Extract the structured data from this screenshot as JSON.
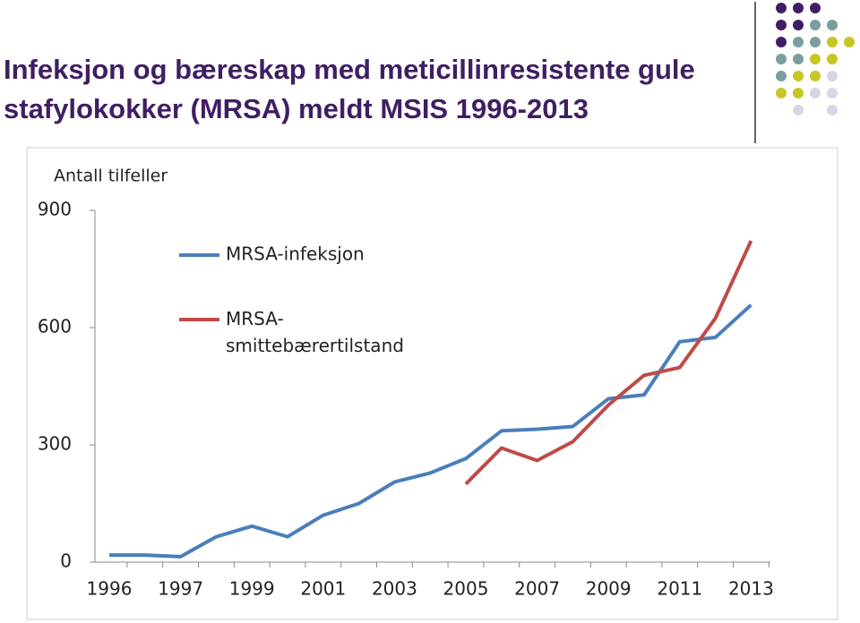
{
  "chart_data": {
    "type": "line",
    "title": "Infeksjon og bæreskap med meticillinresistente gule stafylokokker (MRSA) meldt MSIS 1996-2013",
    "y_label": "Antall tilfeller",
    "categories": [
      "1996",
      null,
      "1997",
      null,
      "1999",
      null,
      "2001",
      null,
      "2003",
      null,
      "2005",
      null,
      "2007",
      null,
      "2009",
      null,
      "2011",
      null,
      "2013"
    ],
    "series": [
      {
        "name": "MRSA-infeksjon",
        "color": "#4a7ebb",
        "values": [
          18,
          18,
          14,
          65,
          92,
          65,
          120,
          150,
          205,
          228,
          265,
          336,
          340,
          347,
          418,
          428,
          564,
          575,
          658
        ]
      },
      {
        "name": "MRSA-smittebærertilstand",
        "color": "#be4b48",
        "values": [
          null,
          null,
          null,
          null,
          null,
          null,
          null,
          null,
          null,
          null,
          200,
          292,
          260,
          308,
          402,
          478,
          498,
          624,
          822
        ]
      }
    ],
    "ylim": [
      0,
      900
    ],
    "yticks": [
      0,
      300,
      600,
      900
    ],
    "grid": false
  }
}
